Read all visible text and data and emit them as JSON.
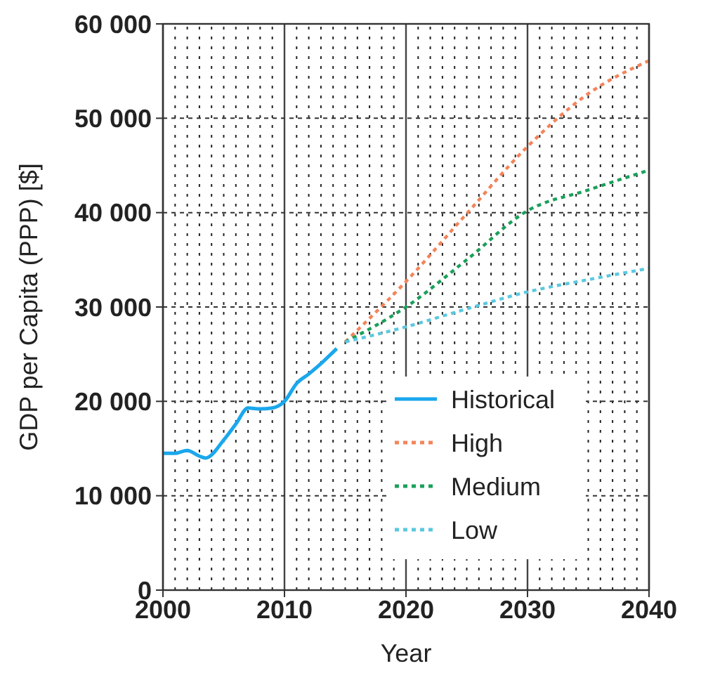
{
  "chart_data": {
    "type": "line",
    "xlabel": "Year",
    "ylabel": "GDP per Capita (PPP) [$]",
    "xlim": [
      2000,
      2040
    ],
    "xticks": [
      2000,
      2010,
      2020,
      2030,
      2040
    ],
    "ylim": [
      0,
      60000
    ],
    "yticks": [
      {
        "value": 0,
        "label": "0"
      },
      {
        "value": 10000,
        "label": "10 000"
      },
      {
        "value": 20000,
        "label": "20 000"
      },
      {
        "value": 30000,
        "label": "30 000"
      },
      {
        "value": 40000,
        "label": "40 000"
      },
      {
        "value": 50000,
        "label": "50 000"
      },
      {
        "value": 60000,
        "label": "60 000"
      }
    ],
    "grid": true,
    "legend": "bottom right",
    "series": [
      {
        "name": "Historical",
        "color": "#1aa7ec",
        "line_style": "solid",
        "x": [
          2000,
          2001,
          2002,
          2003,
          2003.5,
          2005,
          2006,
          2007,
          2008,
          2009,
          2010,
          2011,
          2012,
          2013,
          2014.3
        ],
        "values": [
          14500,
          14500,
          14800,
          14200,
          14000,
          15900,
          17600,
          19300,
          19200,
          19300,
          20000,
          21900,
          22900,
          24000,
          25600
        ]
      },
      {
        "name": "High",
        "color": "#f4845a",
        "line_style": "dotted",
        "x": [
          2015,
          2020,
          2025,
          2030,
          2035,
          2040
        ],
        "values": [
          26300,
          32700,
          39900,
          47000,
          52600,
          56100
        ]
      },
      {
        "name": "Medium",
        "color": "#1aa05a",
        "line_style": "dotted",
        "x": [
          2015,
          2020,
          2025,
          2030,
          2035,
          2040
        ],
        "values": [
          26300,
          30000,
          35000,
          40200,
          42400,
          44500
        ]
      },
      {
        "name": "Low",
        "color": "#5bc8e0",
        "line_style": "dotted",
        "x": [
          2015,
          2020,
          2025,
          2030,
          2035,
          2040
        ],
        "values": [
          26300,
          27900,
          29800,
          31600,
          32900,
          34100
        ]
      }
    ]
  }
}
